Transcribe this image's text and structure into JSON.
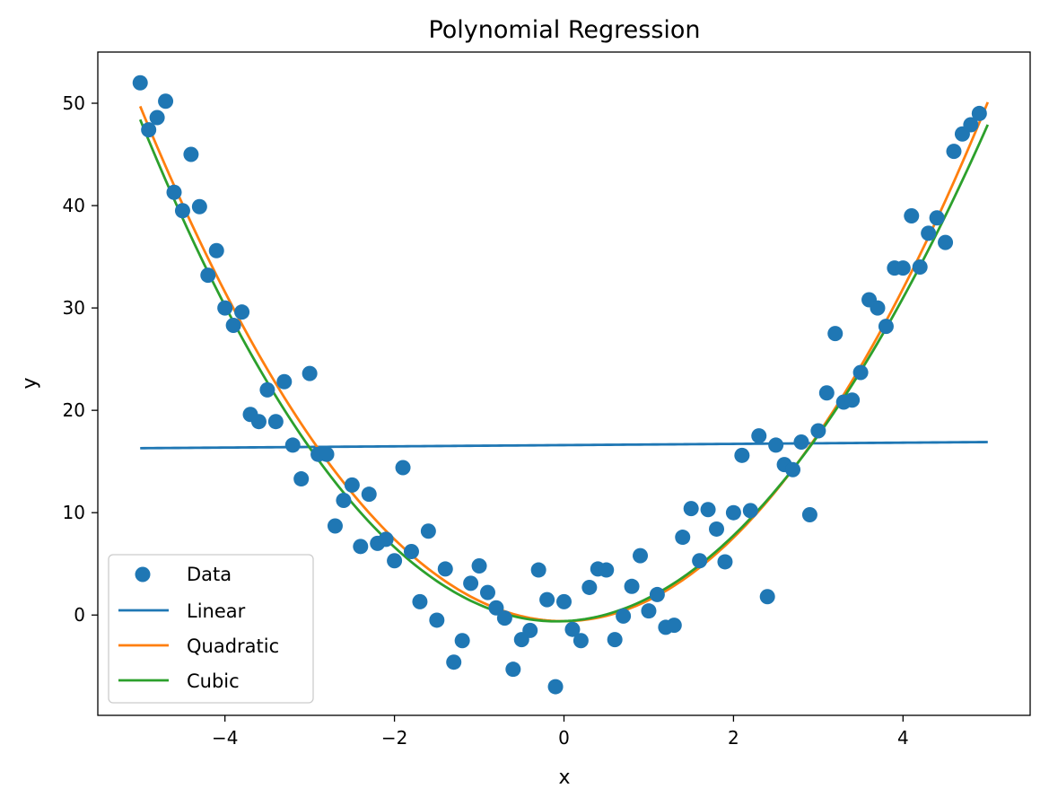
{
  "chart_data": {
    "type": "scatter",
    "title": "Polynomial Regression",
    "xlabel": "x",
    "ylabel": "y",
    "xlim": [
      -5.5,
      5.5
    ],
    "ylim": [
      -9.8,
      55
    ],
    "xticks": [
      -4,
      -2,
      0,
      2,
      4
    ],
    "yticks": [
      0,
      10,
      20,
      30,
      40,
      50
    ],
    "xtick_labels": [
      "−4",
      "−2",
      "0",
      "2",
      "4"
    ],
    "ytick_labels": [
      "0",
      "10",
      "20",
      "30",
      "40",
      "50"
    ],
    "grid": false,
    "legend": {
      "placement": "lower-left",
      "entries": [
        "Data",
        "Linear",
        "Quadratic",
        "Cubic"
      ]
    },
    "colors": {
      "data": "#1f77b4",
      "linear": "#1f77b4",
      "quadratic": "#ff7f0e",
      "cubic": "#2ca02c"
    },
    "scatter_series": {
      "name": "Data",
      "points": [
        [
          -5.0,
          52.0
        ],
        [
          -4.9,
          47.4
        ],
        [
          -4.8,
          48.6
        ],
        [
          -4.7,
          50.2
        ],
        [
          -4.6,
          41.3
        ],
        [
          -4.5,
          39.5
        ],
        [
          -4.4,
          45.0
        ],
        [
          -4.3,
          39.9
        ],
        [
          -4.2,
          33.2
        ],
        [
          -4.1,
          35.6
        ],
        [
          -4.0,
          30.0
        ],
        [
          -3.9,
          28.3
        ],
        [
          -3.8,
          29.6
        ],
        [
          -3.7,
          19.6
        ],
        [
          -3.6,
          18.9
        ],
        [
          -3.5,
          22.0
        ],
        [
          -3.4,
          18.9
        ],
        [
          -3.3,
          22.8
        ],
        [
          -3.2,
          16.6
        ],
        [
          -3.1,
          13.3
        ],
        [
          -3.0,
          23.6
        ],
        [
          -2.9,
          15.7
        ],
        [
          -2.8,
          15.7
        ],
        [
          -2.7,
          8.7
        ],
        [
          -2.6,
          11.2
        ],
        [
          -2.5,
          12.7
        ],
        [
          -2.4,
          6.7
        ],
        [
          -2.3,
          11.8
        ],
        [
          -2.2,
          7.0
        ],
        [
          -2.1,
          7.4
        ],
        [
          -2.0,
          5.3
        ],
        [
          -1.9,
          14.4
        ],
        [
          -1.8,
          6.2
        ],
        [
          -1.7,
          1.3
        ],
        [
          -1.6,
          8.2
        ],
        [
          -1.5,
          -0.5
        ],
        [
          -1.4,
          4.5
        ],
        [
          -1.3,
          -4.6
        ],
        [
          -1.2,
          -2.5
        ],
        [
          -1.1,
          3.1
        ],
        [
          -1.0,
          4.8
        ],
        [
          -0.9,
          2.2
        ],
        [
          -0.8,
          0.7
        ],
        [
          -0.7,
          -0.3
        ],
        [
          -0.6,
          -5.3
        ],
        [
          -0.5,
          -2.4
        ],
        [
          -0.4,
          -1.5
        ],
        [
          -0.3,
          4.4
        ],
        [
          -0.2,
          1.5
        ],
        [
          -0.1,
          -7.0
        ],
        [
          0.0,
          1.3
        ],
        [
          0.1,
          -1.4
        ],
        [
          0.2,
          -2.5
        ],
        [
          0.3,
          2.7
        ],
        [
          0.4,
          4.5
        ],
        [
          0.5,
          4.4
        ],
        [
          0.6,
          -2.4
        ],
        [
          0.7,
          -0.1
        ],
        [
          0.8,
          2.8
        ],
        [
          0.9,
          5.8
        ],
        [
          1.0,
          0.4
        ],
        [
          1.1,
          2.0
        ],
        [
          1.2,
          -1.2
        ],
        [
          1.3,
          -1.0
        ],
        [
          1.4,
          7.6
        ],
        [
          1.5,
          10.4
        ],
        [
          1.6,
          5.3
        ],
        [
          1.7,
          10.3
        ],
        [
          1.8,
          8.4
        ],
        [
          1.9,
          5.2
        ],
        [
          2.0,
          10.0
        ],
        [
          2.1,
          15.6
        ],
        [
          2.2,
          10.2
        ],
        [
          2.3,
          17.5
        ],
        [
          2.4,
          1.8
        ],
        [
          2.5,
          16.6
        ],
        [
          2.6,
          14.7
        ],
        [
          2.7,
          14.2
        ],
        [
          2.8,
          16.9
        ],
        [
          2.9,
          9.8
        ],
        [
          3.0,
          18.0
        ],
        [
          3.1,
          21.7
        ],
        [
          3.2,
          27.5
        ],
        [
          3.3,
          20.8
        ],
        [
          3.4,
          21.0
        ],
        [
          3.5,
          23.7
        ],
        [
          3.6,
          30.8
        ],
        [
          3.7,
          30.0
        ],
        [
          3.8,
          28.2
        ],
        [
          3.9,
          33.9
        ],
        [
          4.0,
          33.9
        ],
        [
          4.1,
          39.0
        ],
        [
          4.2,
          34.0
        ],
        [
          4.3,
          37.3
        ],
        [
          4.4,
          38.8
        ],
        [
          4.5,
          36.4
        ],
        [
          4.6,
          45.3
        ],
        [
          4.7,
          47.0
        ],
        [
          4.8,
          47.9
        ],
        [
          4.9,
          49.0
        ]
      ]
    },
    "line_series": [
      {
        "name": "Linear",
        "key": "linear",
        "kind": "poly",
        "coeffs": [
          16.6,
          0.06
        ],
        "x_range": [
          -5.0,
          5.0
        ]
      },
      {
        "name": "Quadratic",
        "key": "quadratic",
        "kind": "poly",
        "coeffs": [
          -0.6,
          0.04,
          2.02
        ],
        "x_range": [
          -5.0,
          5.0
        ]
      },
      {
        "name": "Cubic",
        "key": "cubic",
        "kind": "poly",
        "coeffs": [
          -0.6,
          0.35,
          1.95,
          -0.016
        ],
        "x_range": [
          -5.0,
          5.0
        ]
      }
    ]
  }
}
